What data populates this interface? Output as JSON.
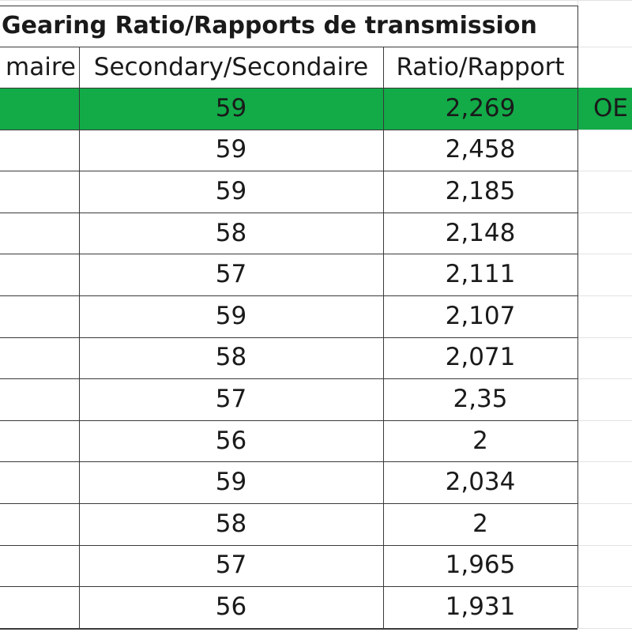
{
  "table": {
    "title": "Gearing Ratio/Rapports de transmission",
    "headers": {
      "primary": "maire",
      "secondary": "Secondary/Secondaire",
      "ratio": "Ratio/Rapport"
    },
    "highlight_color": "#12ab48",
    "rows": [
      {
        "secondary": "59",
        "ratio": "2,269",
        "note": "OE",
        "highlighted": true
      },
      {
        "secondary": "59",
        "ratio": "2,458"
      },
      {
        "secondary": "59",
        "ratio": "2,185"
      },
      {
        "secondary": "58",
        "ratio": "2,148"
      },
      {
        "secondary": "57",
        "ratio": "2,111"
      },
      {
        "secondary": "59",
        "ratio": "2,107"
      },
      {
        "secondary": "58",
        "ratio": "2,071"
      },
      {
        "secondary": "57",
        "ratio": "2,35"
      },
      {
        "secondary": "56",
        "ratio": "2"
      },
      {
        "secondary": "59",
        "ratio": "2,034"
      },
      {
        "secondary": "58",
        "ratio": "2"
      },
      {
        "secondary": "57",
        "ratio": "1,965"
      },
      {
        "secondary": "56",
        "ratio": "1,931"
      }
    ]
  }
}
